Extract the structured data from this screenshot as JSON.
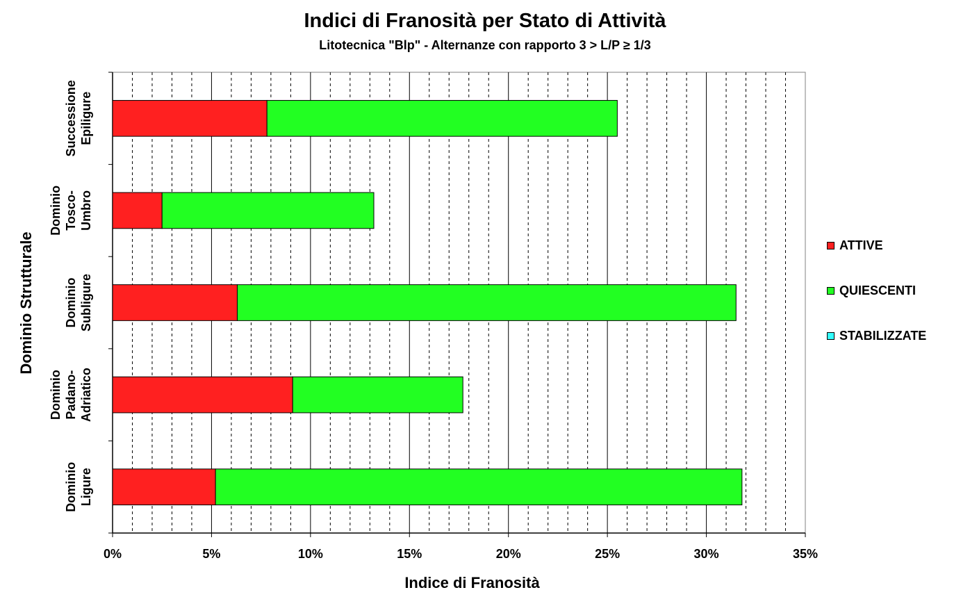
{
  "chart_data": {
    "type": "bar",
    "orientation": "horizontal",
    "stacked": true,
    "title": "Indici di Franosità per Stato di Attività",
    "subtitle": "Litotecnica \"Blp\" - Alternanze con rapporto 3 > L/P ≥ 1/3",
    "xlabel": "Indice di Franosità",
    "ylabel": "Dominio Strutturale",
    "xlim": [
      0,
      35
    ],
    "x_ticks": [
      "0%",
      "5%",
      "10%",
      "15%",
      "20%",
      "25%",
      "30%",
      "35%"
    ],
    "grid": "vertical lines: solid at major ticks, dashed at minor ticks",
    "legend_position": "right",
    "categories": [
      [
        "Successione",
        "Epiligure"
      ],
      [
        "Dominio",
        "Tosco-",
        "Umbro"
      ],
      [
        "Dominio",
        "Subligure"
      ],
      [
        "Dominio",
        "Padano-",
        "Adriatico"
      ],
      [
        "Dominio",
        "Ligure"
      ]
    ],
    "series": [
      {
        "name": "ATTIVE",
        "color": "#ff2020",
        "values": [
          7.8,
          2.5,
          6.3,
          9.1,
          5.2
        ]
      },
      {
        "name": "QUIESCENTI",
        "color": "#22ff22",
        "values": [
          17.7,
          10.7,
          25.2,
          8.6,
          26.6
        ]
      },
      {
        "name": "STABILIZZATE",
        "color": "#33ffff",
        "values": [
          0,
          0,
          0,
          0,
          0
        ]
      }
    ]
  }
}
